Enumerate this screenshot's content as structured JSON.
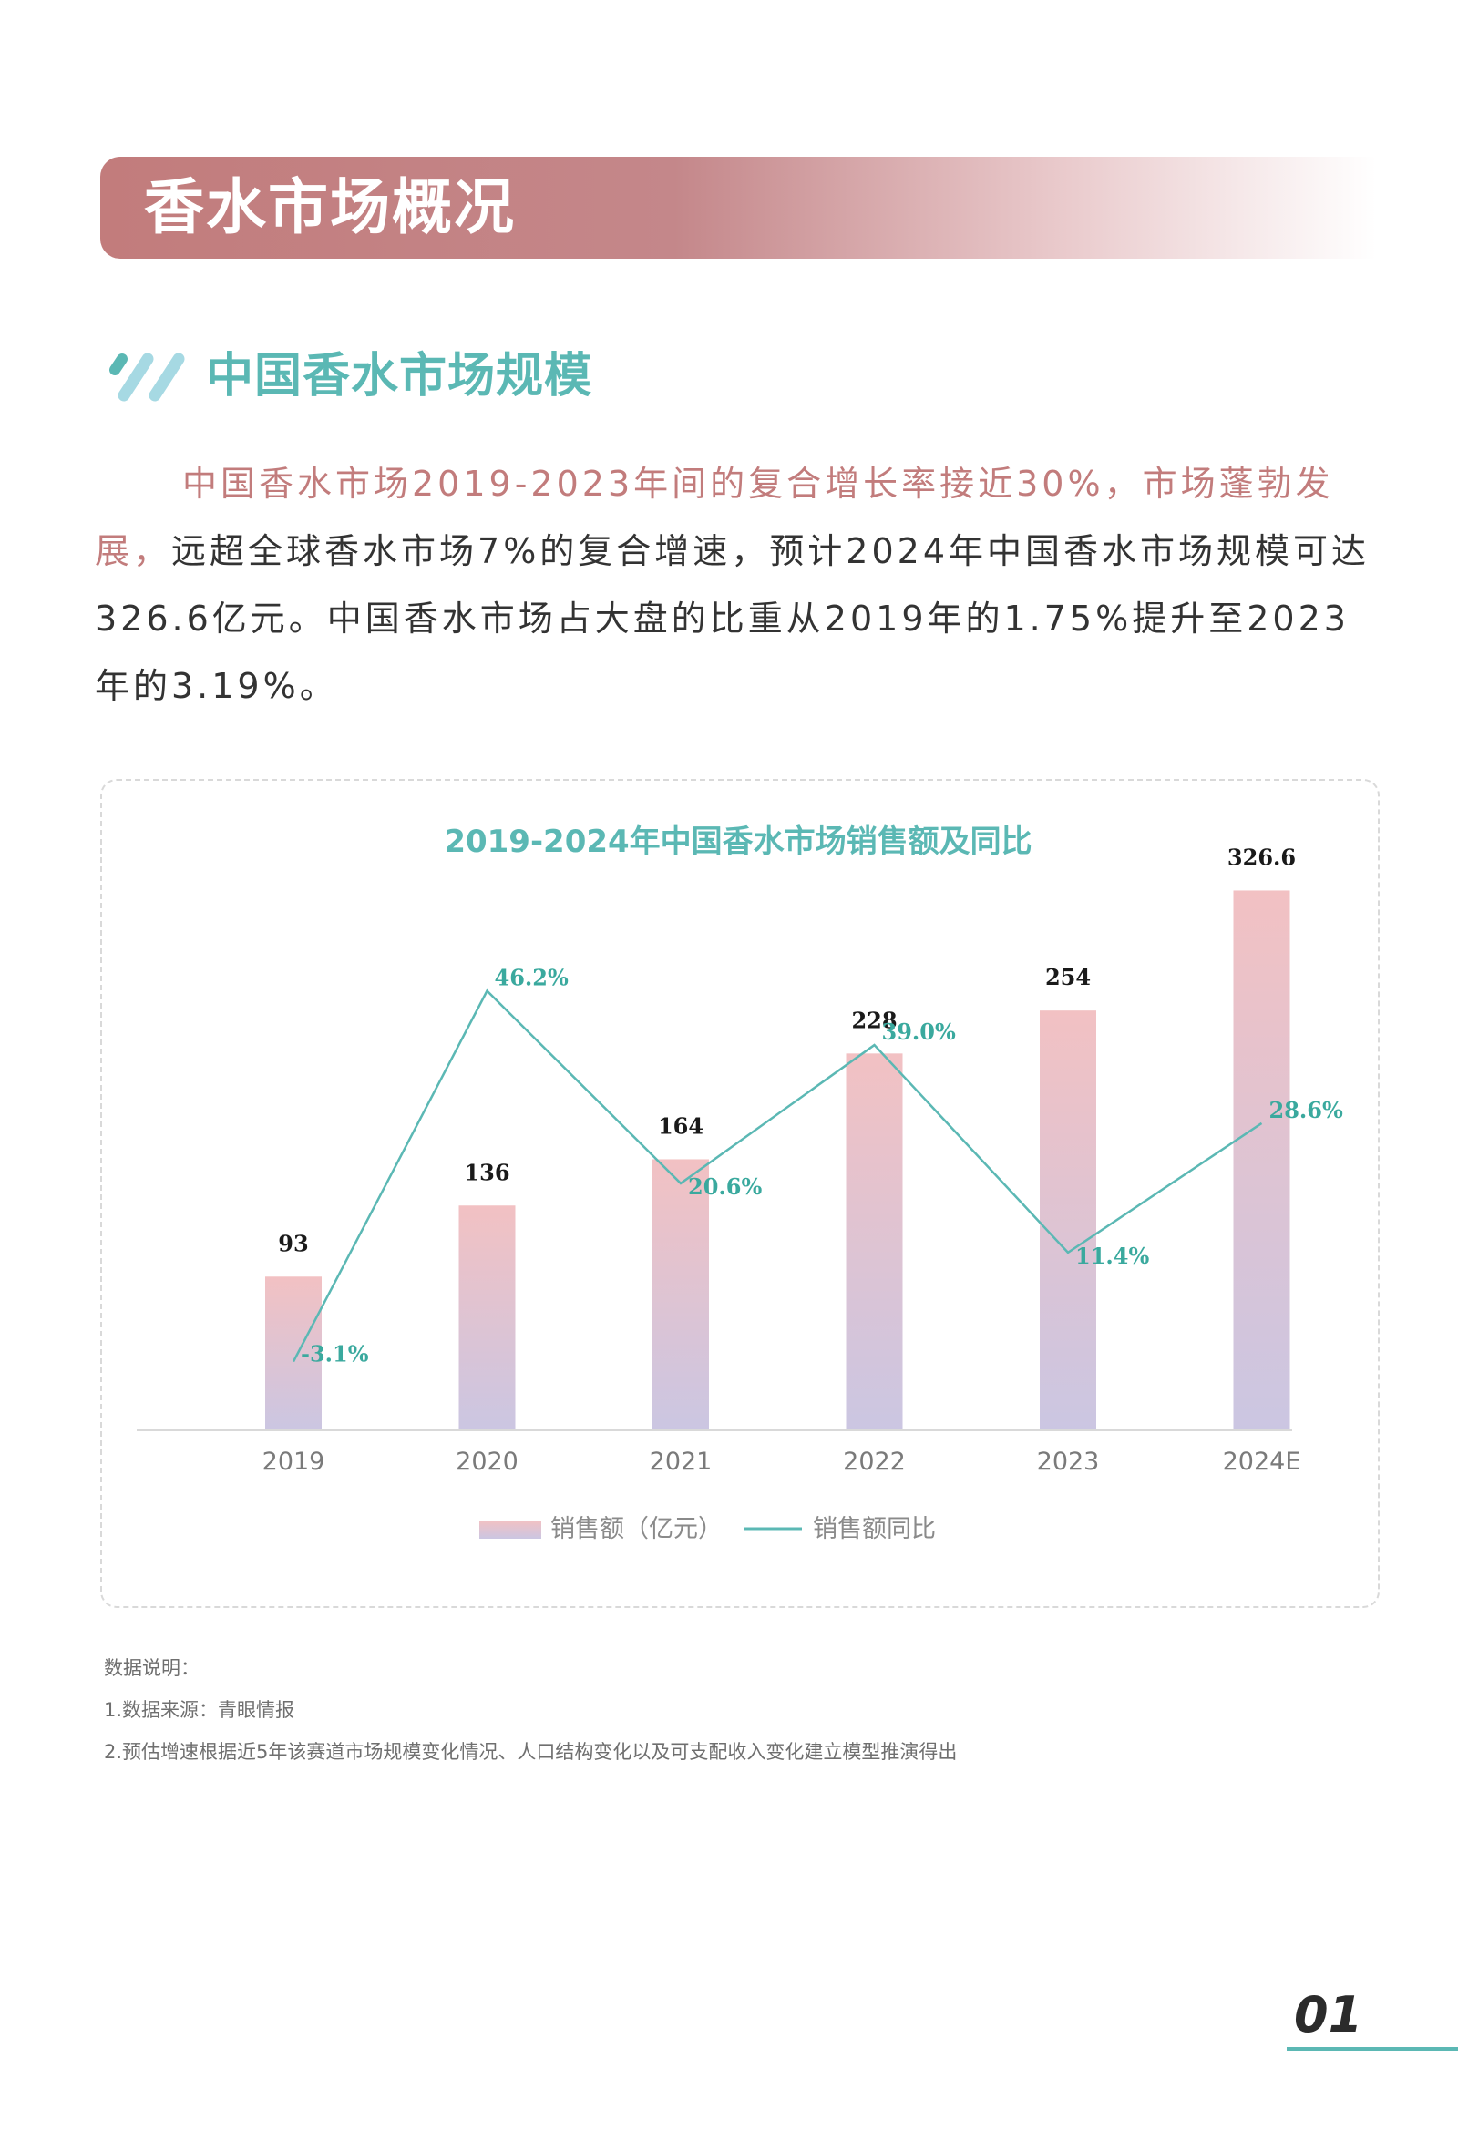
{
  "page": {
    "banner_title": "香水市场概况",
    "section_title": "中国香水市场规模",
    "paragraph": {
      "accent": "中国香水市场2019-2023年间的复合增长率接近30%，市场蓬勃发展，",
      "rest": "远超全球香水市场7%的复合增速，预计2024年中国香水市场规模可达326.6亿元。中国香水市场占大盘的比重从2019年的1.75%提升至2023年的3.19%。"
    },
    "notes": {
      "heading": "数据说明：",
      "source": "1.数据来源：青眼情报",
      "method": "2.预估增速根据近5年该赛道市场规模变化情况、人口结构变化以及可支配收入变化建立模型推演得出"
    },
    "page_number": "01"
  },
  "colors": {
    "banner": "#c27c7c",
    "accent_text": "#c27c7c",
    "teal": "#5bb8b4",
    "bar_top": "#f2c1c3",
    "bar_bottom": "#cbc6e2",
    "line_label": "#3aa99e"
  },
  "chart_data": {
    "type": "bar",
    "title": "2019-2024年中国香水市场销售额及同比",
    "categories": [
      "2019",
      "2020",
      "2021",
      "2022",
      "2023",
      "2024E"
    ],
    "series": [
      {
        "name": "销售额（亿元）",
        "type": "bar",
        "values": [
          93,
          136,
          164,
          228,
          254,
          326.6
        ],
        "labels": [
          "93",
          "136",
          "164",
          "228",
          "254",
          "326.6"
        ]
      },
      {
        "name": "销售额同比",
        "type": "line",
        "values": [
          -3.1,
          46.2,
          20.6,
          39.0,
          11.4,
          28.6
        ],
        "labels": [
          "-3.1%",
          "46.2%",
          "20.6%",
          "39.0%",
          "11.4%",
          "28.6%"
        ]
      }
    ],
    "xlabel": "",
    "ylabel": "",
    "ylim": [
      0,
      350
    ],
    "y2lim": [
      -8,
      55
    ],
    "grid": false,
    "legend": "bottom"
  }
}
